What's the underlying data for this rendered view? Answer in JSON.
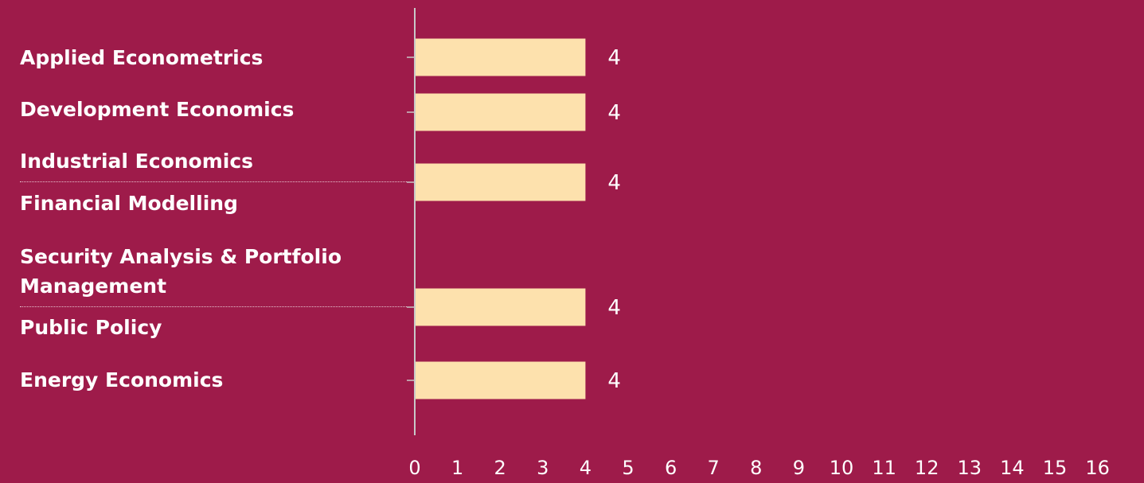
{
  "colors": {
    "background": "#9e1b4a",
    "bar": "#fde1ad",
    "text": "#ffffff",
    "axis": "#c8c8c8"
  },
  "chart_data": {
    "type": "bar",
    "orientation": "horizontal",
    "title": "",
    "xlabel": "",
    "ylabel": "",
    "xlim": [
      0,
      16
    ],
    "x_ticks": [
      "0",
      "1",
      "2",
      "3",
      "4",
      "5",
      "6",
      "7",
      "8",
      "9",
      "10",
      "11",
      "12",
      "13",
      "14",
      "15",
      "16"
    ],
    "grid": false,
    "labels": [
      "Applied Econometrics",
      "Development Economics",
      "Industrial Economics",
      "Financial Modelling",
      "Security Analysis & Portfolio",
      "Management",
      "Public Policy",
      "Energy Economics"
    ],
    "categories": [
      "Applied Econometrics",
      "Development Economics",
      "Industrial Economics / Financial Modelling",
      "Security Analysis & Portfolio Management / Public Policy",
      "Energy Economics"
    ],
    "values": [
      4,
      4,
      4,
      4,
      4
    ],
    "data_labels": [
      "4",
      "4",
      "4",
      "4",
      "4"
    ]
  }
}
